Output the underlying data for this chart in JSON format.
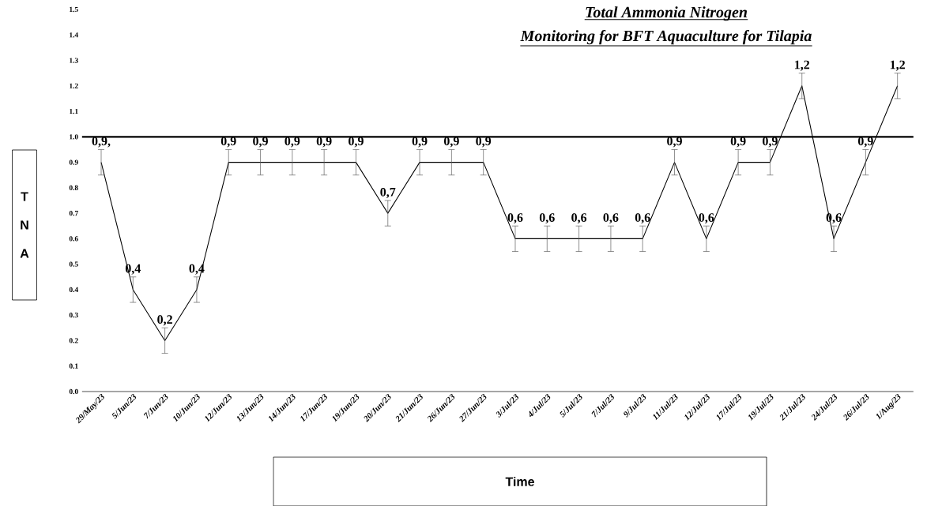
{
  "chart_data": {
    "type": "line",
    "title": "Total Ammonia Nitrogen",
    "subtitle": "Monitoring for BFT Aquaculture for Tilapia",
    "xlabel": "Time",
    "ylabel": "T N A",
    "categories": [
      "29/May/23",
      "5/Jun/23",
      "7/Jun/23",
      "10/Jun/23",
      "12/Jun/23",
      "13/Jun/23",
      "14/Jun/23",
      "17/Jun/23",
      "19/Jun/23",
      "20/Jun/23",
      "21/Jun/23",
      "26/Jun/23",
      "27/Jun/23",
      "3/Jul/23",
      "4/Jul/23",
      "5/Jul/23",
      "7/Jul/23",
      "9/Jul/23",
      "11/Jul/23",
      "12/Jul/23",
      "17/Jul/23",
      "19/Jul/23",
      "21/Jul/23",
      "24/Jul/23",
      "26/Jul/23",
      "1/Aug/23"
    ],
    "series": [
      {
        "color": "#000000",
        "values": [
          0.9,
          0.4,
          0.2,
          0.4,
          0.9,
          0.9,
          0.9,
          0.9,
          0.9,
          0.7,
          0.9,
          0.9,
          0.9,
          0.6,
          0.6,
          0.6,
          0.6,
          0.6,
          0.9,
          0.6,
          0.9,
          0.9,
          1.2,
          0.6,
          0.9,
          1.2
        ],
        "errors": [
          0.05,
          0.05,
          0.05,
          0.05,
          0.05,
          0.05,
          0.05,
          0.05,
          0.05,
          0.05,
          0.05,
          0.05,
          0.05,
          0.05,
          0.05,
          0.05,
          0.05,
          0.05,
          0.05,
          0.05,
          0.05,
          0.05,
          0.05,
          0.05,
          0.05,
          0.05
        ],
        "value_labels": [
          "0,9,",
          "0,4",
          "0,2",
          "0,4",
          "0,9",
          "0,9",
          "0,9",
          "0,9",
          "0,9",
          "0,7",
          "0,9",
          "0,9",
          "0,9",
          "0,6",
          "0,6",
          "0,6",
          "0,6",
          "0,6",
          "0,9",
          "0,6",
          "0,9",
          "0,9",
          "1,2",
          "0,6",
          "0,9",
          "1,2"
        ]
      }
    ],
    "ylim": [
      0,
      1.5
    ],
    "yticks": [
      {
        "value": 0,
        "label": "0.0"
      },
      {
        "value": 0.1,
        "label": "0.1"
      },
      {
        "value": 0.2,
        "label": "0.2"
      },
      {
        "value": 0.3,
        "label": "0.3"
      },
      {
        "value": 0.4,
        "label": "0.4"
      },
      {
        "value": 0.5,
        "label": "0.5"
      },
      {
        "value": 0.6,
        "label": "0.6"
      },
      {
        "value": 0.7,
        "label": "0.7"
      },
      {
        "value": 0.8,
        "label": "0.8"
      },
      {
        "value": 0.9,
        "label": "0.9"
      },
      {
        "value": 1.0,
        "label": "1.0"
      },
      {
        "value": 1.1,
        "label": "1.1"
      },
      {
        "value": 1.2,
        "label": "1.2"
      },
      {
        "value": 1.3,
        "label": "1.3"
      },
      {
        "value": 1.4,
        "label": "1.4"
      },
      {
        "value": 1.5,
        "label": "1.5"
      }
    ],
    "ref_lines": [
      {
        "axis": "y",
        "value": 1.0,
        "color": "#000000"
      }
    ],
    "grid": false,
    "marker": "none",
    "line_style": "solid"
  }
}
